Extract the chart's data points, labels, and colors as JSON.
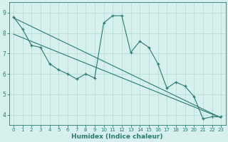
{
  "xlabel": "Humidex (Indice chaleur)",
  "x_values": [
    0,
    1,
    2,
    3,
    4,
    5,
    6,
    7,
    8,
    9,
    10,
    11,
    12,
    13,
    14,
    15,
    16,
    17,
    18,
    19,
    20,
    21,
    22,
    23
  ],
  "main_line": [
    8.8,
    8.2,
    7.4,
    7.3,
    6.5,
    6.2,
    6.0,
    5.75,
    6.0,
    5.8,
    8.5,
    8.85,
    8.85,
    7.05,
    7.6,
    7.3,
    6.5,
    5.3,
    5.6,
    5.4,
    4.9,
    3.8,
    3.9,
    3.9
  ],
  "trend1_x": [
    0,
    23
  ],
  "trend1_y": [
    8.75,
    3.85
  ],
  "trend2_x": [
    0,
    23
  ],
  "trend2_y": [
    7.95,
    3.85
  ],
  "ylim": [
    3.5,
    9.5
  ],
  "xlim": [
    -0.5,
    23.5
  ],
  "yticks": [
    4,
    5,
    6,
    7,
    8,
    9
  ],
  "xticks": [
    0,
    1,
    2,
    3,
    4,
    5,
    6,
    7,
    8,
    9,
    10,
    11,
    12,
    13,
    14,
    15,
    16,
    17,
    18,
    19,
    20,
    21,
    22,
    23
  ],
  "line_color": "#2a7a6e",
  "bg_color": "#d5f0ed",
  "grid_color": "#b2d8d3",
  "tick_color": "#2a7a6e",
  "label_color": "#2a7a6e"
}
